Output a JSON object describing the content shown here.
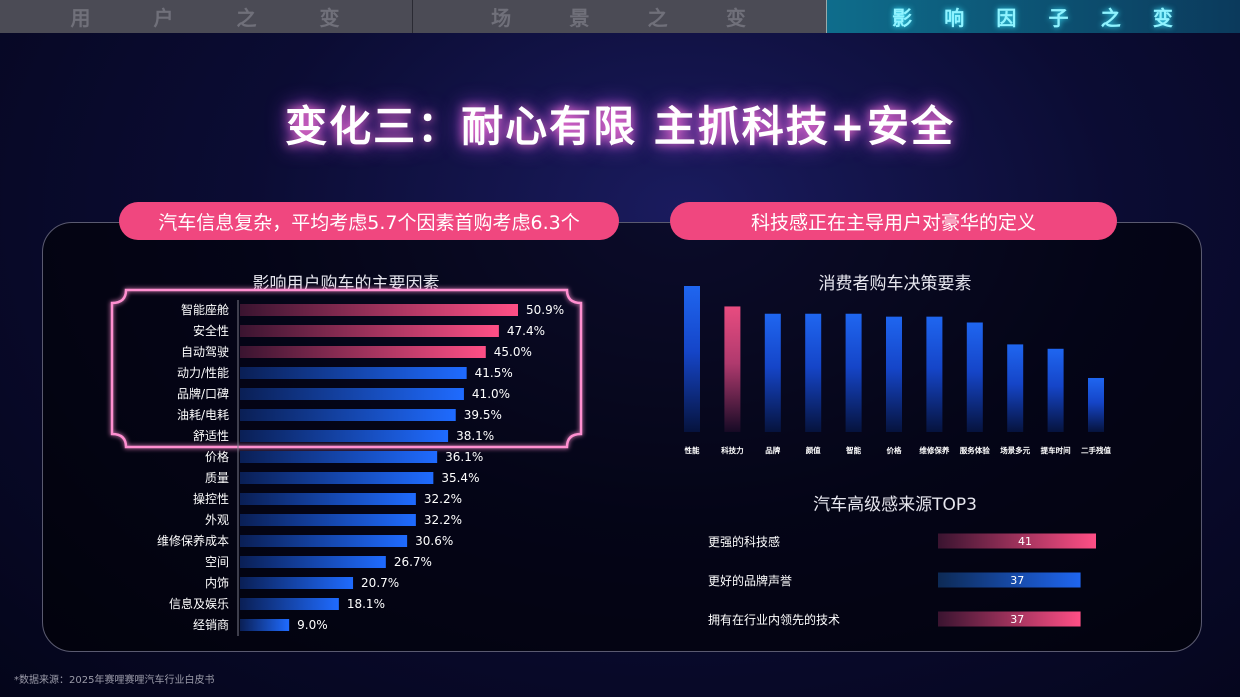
{
  "tabs": [
    {
      "label": "用 户 之 变",
      "chars": [
        "用",
        "户",
        "之",
        "变"
      ]
    },
    {
      "label": "场 景 之 变",
      "chars": [
        "场",
        "景",
        "之",
        "变"
      ]
    },
    {
      "label": "影 响 因 子 之 变",
      "chars": [
        "影",
        "响",
        "因",
        "子",
        "之",
        "变"
      ]
    }
  ],
  "title": "变化三：耐心有限 主抓科技+安全",
  "pills": {
    "left": "汽车信息复杂，平均考虑5.7个因素首购考虑6.3个",
    "right": "科技感正在主导用户对豪华的定义"
  },
  "footnote": "*数据来源：2025年赛哩赛哩汽车行业白皮书",
  "colors": {
    "pink": "#f0477f",
    "blue": "#1f66f0",
    "accent_text": "#8ff3ff"
  },
  "chart_data": [
    {
      "type": "bar",
      "orientation": "horizontal",
      "title": "影响用户购车的主要因素",
      "categories": [
        "智能座舱",
        "安全性",
        "自动驾驶",
        "动力/性能",
        "品牌/口碑",
        "油耗/电耗",
        "舒适性",
        "价格",
        "质量",
        "操控性",
        "外观",
        "维修保养成本",
        "空间",
        "内饰",
        "信息及娱乐",
        "经销商"
      ],
      "values": [
        50.9,
        47.4,
        45.0,
        41.5,
        41.0,
        39.5,
        38.1,
        36.1,
        35.4,
        32.2,
        32.2,
        30.6,
        26.7,
        20.7,
        18.1,
        9.0
      ],
      "labels": [
        "50.9%",
        "47.4%",
        "45.0%",
        "41.5%",
        "41.0%",
        "39.5%",
        "38.1%",
        "36.1%",
        "35.4%",
        "32.2%",
        "32.2%",
        "30.6%",
        "26.7%",
        "20.7%",
        "18.1%",
        "9.0%"
      ],
      "highlight_count": 3,
      "boxed_count": 7,
      "xlim": [
        0,
        52
      ]
    },
    {
      "type": "bar",
      "orientation": "vertical",
      "title": "消费者购车决策要素",
      "categories": [
        "性能",
        "科技力",
        "品牌",
        "颜值",
        "智能",
        "价格",
        "维修保养",
        "服务体验",
        "场景多元",
        "提车时间",
        "二手残值"
      ],
      "values": [
        100,
        86,
        81,
        81,
        81,
        79,
        79,
        75,
        60,
        57,
        37
      ],
      "highlight_index": 1,
      "ylim": [
        0,
        100
      ]
    },
    {
      "type": "bar",
      "orientation": "horizontal",
      "title": "汽车高级感来源TOP3",
      "categories": [
        "更强的科技感",
        "更好的品牌声誉",
        "拥有在行业内领先的技术"
      ],
      "values": [
        41,
        37,
        37
      ],
      "labels": [
        "41",
        "37",
        "37"
      ],
      "xlim": [
        0,
        41
      ]
    }
  ]
}
